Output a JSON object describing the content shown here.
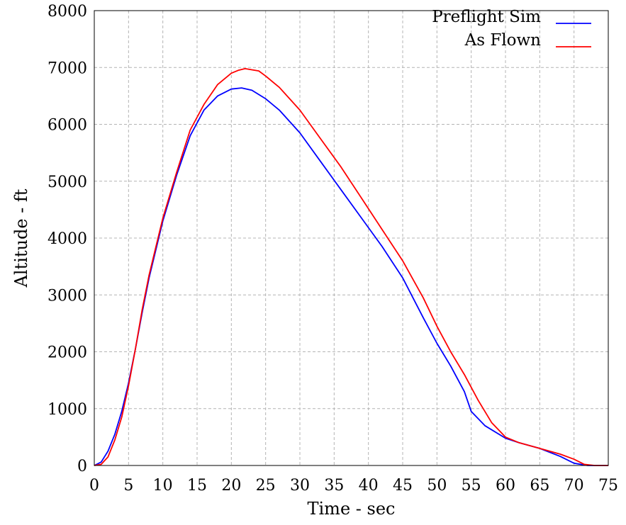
{
  "chart_data": {
    "type": "line",
    "title": "",
    "xlabel": "Time - sec",
    "ylabel": "Altitude - ft",
    "xlim": [
      0,
      75
    ],
    "ylim": [
      0,
      8000
    ],
    "x_ticks": [
      0,
      5,
      10,
      15,
      20,
      25,
      30,
      35,
      40,
      45,
      50,
      55,
      60,
      65,
      70,
      75
    ],
    "y_ticks": [
      0,
      1000,
      2000,
      3000,
      4000,
      5000,
      6000,
      7000,
      8000
    ],
    "x_tick_labels": [
      "0",
      "5",
      "10",
      "15",
      "20",
      "25",
      "30",
      "35",
      "40",
      "45",
      "50",
      "55",
      "60",
      "65",
      "70",
      "75"
    ],
    "y_tick_labels": [
      "0",
      "1000",
      "2000",
      "3000",
      "4000",
      "5000",
      "6000",
      "7000",
      "8000"
    ],
    "grid": true,
    "grid_style": "dashed",
    "legend_position": "top-right",
    "series": [
      {
        "name": "Preflight Sim",
        "color": "#0000ff",
        "x": [
          0,
          1,
          2,
          3,
          4,
          5,
          6,
          7,
          8,
          9,
          10,
          12,
          14,
          16,
          18,
          20,
          21.5,
          23,
          25,
          27,
          30,
          33,
          36,
          39,
          42,
          45,
          48,
          50,
          52,
          54,
          55,
          57,
          60,
          62,
          65,
          68,
          70,
          72,
          75
        ],
        "y": [
          0,
          60,
          250,
          550,
          950,
          1450,
          2050,
          2700,
          3300,
          3800,
          4300,
          5100,
          5800,
          6250,
          6500,
          6620,
          6640,
          6600,
          6450,
          6250,
          5850,
          5350,
          4850,
          4350,
          3850,
          3300,
          2600,
          2150,
          1750,
          1300,
          950,
          700,
          480,
          400,
          300,
          160,
          40,
          0,
          0
        ]
      },
      {
        "name": "As Flown",
        "color": "#ff0000",
        "x": [
          0,
          1,
          2,
          3,
          4,
          5,
          6,
          7,
          8,
          9,
          10,
          12,
          14,
          16,
          18,
          20,
          21,
          22,
          23,
          24,
          25,
          27,
          30,
          33,
          36,
          39,
          42,
          45,
          48,
          50,
          52,
          54,
          56,
          58,
          60,
          62,
          65,
          68,
          70,
          71.5,
          73,
          75
        ],
        "y": [
          0,
          20,
          150,
          450,
          850,
          1400,
          2050,
          2750,
          3350,
          3850,
          4350,
          5150,
          5900,
          6350,
          6700,
          6900,
          6950,
          6980,
          6960,
          6940,
          6850,
          6650,
          6250,
          5750,
          5250,
          4700,
          4150,
          3600,
          2950,
          2450,
          2000,
          1600,
          1150,
          750,
          500,
          400,
          300,
          200,
          110,
          20,
          0,
          0
        ]
      }
    ]
  }
}
